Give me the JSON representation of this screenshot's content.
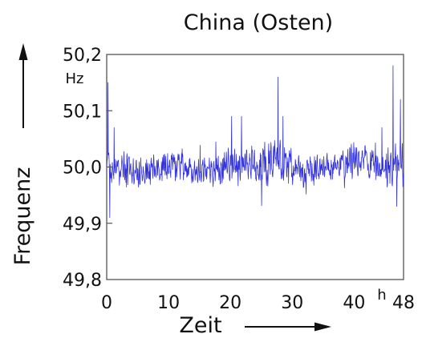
{
  "chart_data": {
    "type": "line",
    "title": "China (Osten)",
    "xlabel": "Zeit",
    "ylabel": "Frequenz",
    "y_unit": "Hz",
    "x_unit": "h",
    "xlim": [
      0,
      48
    ],
    "ylim": [
      49.8,
      50.2
    ],
    "x_ticks": [
      "0",
      "10",
      "20",
      "30",
      "40",
      "48"
    ],
    "y_ticks": [
      "49,8",
      "49,9",
      "50,0",
      "50,1",
      "50,2"
    ],
    "grid": false,
    "colors": {
      "series": "#3333dd",
      "axes": "#555555",
      "text": "#111111"
    },
    "series": [
      {
        "x_step_h": 0.05,
        "profile": {
          "x": [
            0,
            2,
            4,
            6,
            8,
            10,
            12,
            14,
            16,
            18,
            20,
            22,
            24,
            26,
            28,
            30,
            32,
            34,
            36,
            38,
            40,
            42,
            44,
            46,
            48
          ],
          "mean": [
            50.0,
            50.0,
            49.995,
            49.992,
            49.998,
            50.003,
            50.0,
            49.99,
            49.995,
            50.0,
            50.01,
            50.005,
            50.0,
            50.005,
            50.01,
            50.0,
            49.99,
            49.995,
            50.0,
            50.005,
            50.015,
            50.01,
            50.005,
            50.0,
            50.005
          ],
          "amplitude": [
            0.03,
            0.025,
            0.025,
            0.025,
            0.025,
            0.028,
            0.025,
            0.02,
            0.025,
            0.03,
            0.035,
            0.035,
            0.03,
            0.035,
            0.035,
            0.03,
            0.025,
            0.025,
            0.025,
            0.025,
            0.03,
            0.03,
            0.03,
            0.035,
            0.035
          ]
        },
        "peaks": [
          {
            "x": 0.2,
            "y": 50.15
          },
          {
            "x": 0.5,
            "y": 49.91
          },
          {
            "x": 1.2,
            "y": 50.07
          },
          {
            "x": 20.2,
            "y": 50.09
          },
          {
            "x": 21.8,
            "y": 50.09
          },
          {
            "x": 27.7,
            "y": 50.16
          },
          {
            "x": 28.5,
            "y": 50.09
          },
          {
            "x": 44.5,
            "y": 50.07
          },
          {
            "x": 46.3,
            "y": 50.18
          },
          {
            "x": 46.9,
            "y": 49.93
          },
          {
            "x": 47.5,
            "y": 50.12
          }
        ]
      }
    ]
  }
}
